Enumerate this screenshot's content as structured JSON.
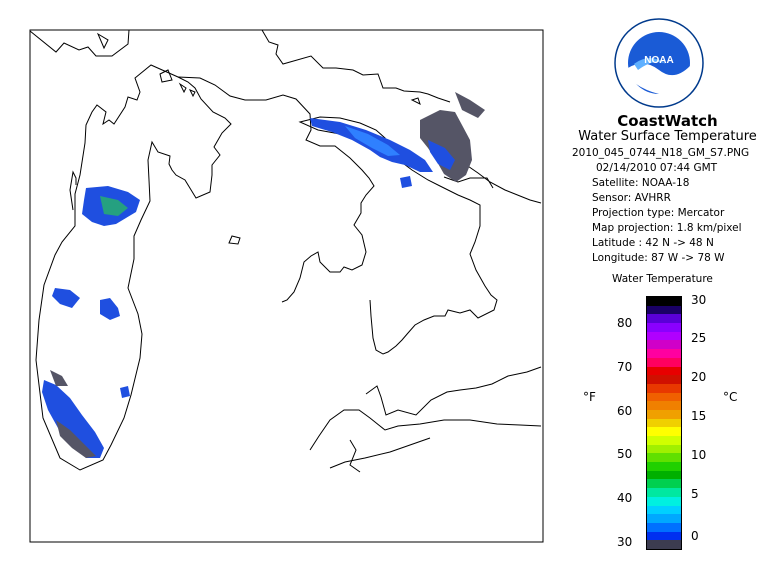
{
  "product": {
    "agency_logo_text": "NOAA",
    "agency_ring_text": "NATIONAL OCEANIC AND ATMOSPHERIC ADMINISTRATION · U.S. DEPARTMENT OF COMMERCE",
    "title": "CoastWatch",
    "subtitle": "Water Surface Temperature",
    "filename": "2010_045_0744_N18_GM_S7.PNG",
    "datetime": "02/14/2010    07:44 GMT",
    "satellite": "Satellite: NOAA-18",
    "sensor": "Sensor: AVHRR",
    "projection_type": "Projection type:  Mercator",
    "map_projection": "Map projection: 1.8 km/pixel",
    "latitude": "Latitude : 42 N  -> 48 N",
    "longitude": "Longitude: 87 W  -> 78 W"
  },
  "legend": {
    "title": "Water Temperature",
    "unit_f": "°F",
    "unit_c": "°C",
    "fahrenheit_ticks": [
      "80",
      "70",
      "60",
      "50",
      "40",
      "30"
    ],
    "celsius_ticks": [
      "30",
      "25",
      "20",
      "15",
      "10",
      "5",
      "0"
    ],
    "colors_top_to_bottom": [
      "#000000",
      "#1a0066",
      "#5a00d8",
      "#8a00ff",
      "#b000ff",
      "#d000c8",
      "#ff00a0",
      "#ff0060",
      "#e80000",
      "#d01000",
      "#e83800",
      "#f06000",
      "#f08000",
      "#f0a000",
      "#f0d000",
      "#ffff00",
      "#d0ff00",
      "#a0f000",
      "#60e000",
      "#20d000",
      "#00b000",
      "#00d050",
      "#00e8a0",
      "#00f0e0",
      "#00d0ff",
      "#00a8ff",
      "#0070ff",
      "#0030f0",
      "#3c3c50"
    ]
  },
  "map": {
    "colors": {
      "land_line": "#000000",
      "ice_blue": "#1f4fe0",
      "ice_light": "#2f80ff",
      "ice_green": "#25a080",
      "ice_gray": "#555566"
    }
  }
}
